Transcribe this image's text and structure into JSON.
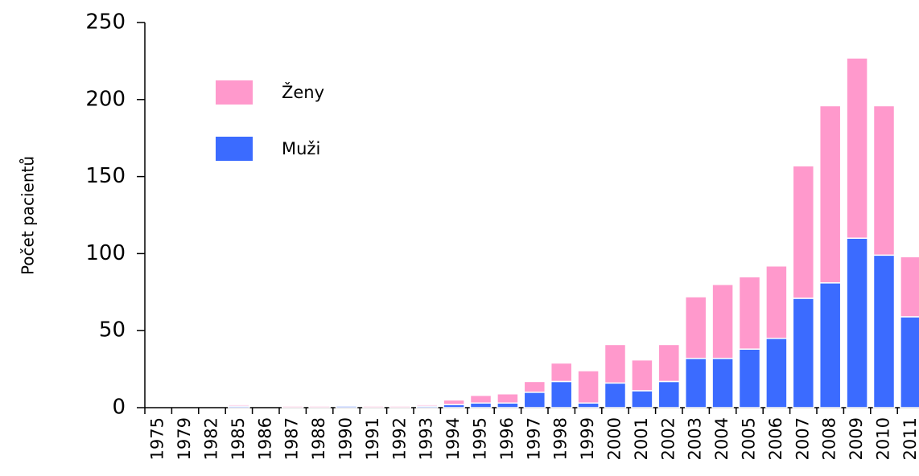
{
  "chart_data": {
    "type": "stacked_bar",
    "y_label": "Počet pacientů",
    "categories": [
      "1975",
      "1979",
      "1982",
      "1985",
      "1986",
      "1987",
      "1988",
      "1990",
      "1991",
      "1992",
      "1993",
      "1994",
      "1995",
      "1996",
      "1997",
      "1998",
      "1999",
      "2000",
      "2001",
      "2002",
      "2003",
      "2004",
      "2005",
      "2006",
      "2007",
      "2008",
      "2009",
      "2010",
      "2011"
    ],
    "series": [
      {
        "name": "Muži",
        "color": "#3b6bff",
        "values": [
          0,
          0,
          0,
          1,
          0,
          0,
          0,
          1,
          0,
          0,
          1,
          2,
          3,
          3,
          10,
          17,
          3,
          16,
          11,
          17,
          32,
          32,
          38,
          45,
          71,
          81,
          110,
          99,
          59
        ]
      },
      {
        "name": "Ženy",
        "color": "#ff99cc",
        "values": [
          0,
          0,
          0,
          1,
          0,
          1,
          1,
          0,
          1,
          1,
          1,
          3,
          5,
          6,
          7,
          12,
          21,
          25,
          20,
          24,
          40,
          48,
          47,
          47,
          86,
          115,
          117,
          97,
          39
        ]
      }
    ],
    "ylim": [
      0,
      250
    ],
    "yticks": [
      0,
      50,
      100,
      150,
      200,
      250
    ],
    "legend": "upper left"
  }
}
